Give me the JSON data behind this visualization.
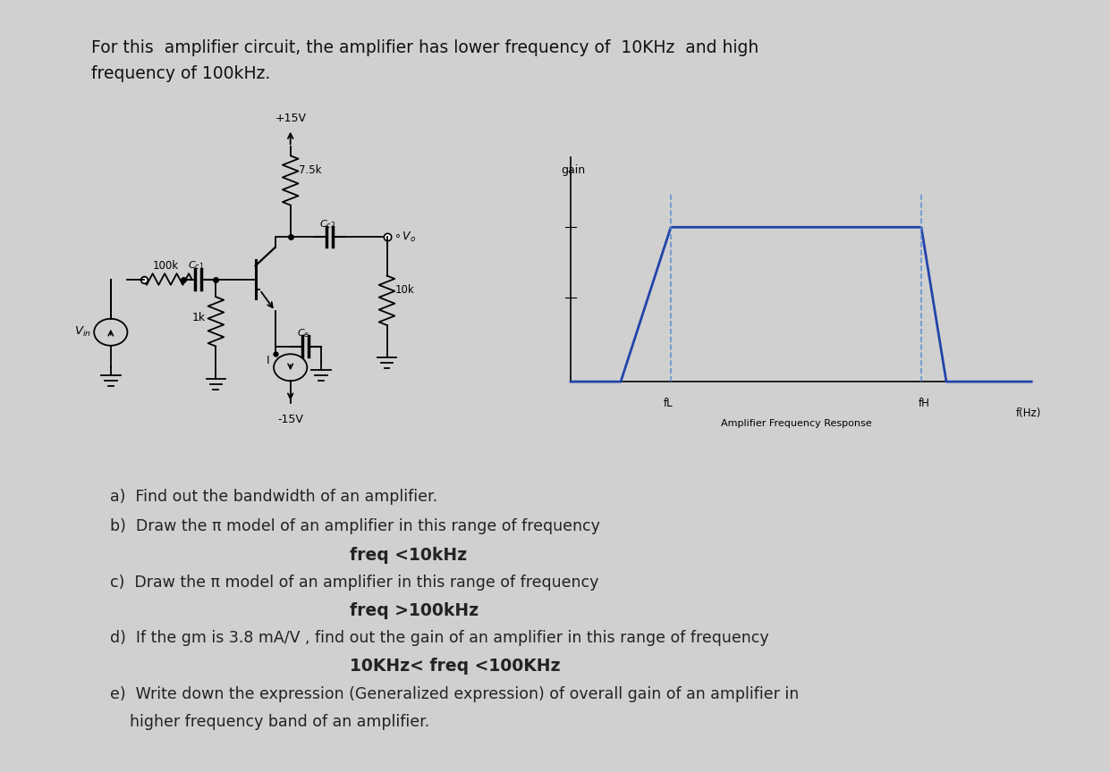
{
  "title_line1": "For this  amplifier circuit, the amplifier has lower frequency of  10KHz  and high",
  "title_line2": "frequency of 100kHz.",
  "bg_color": "#d0d0d0",
  "panel_bg": "#ffffff",
  "freq_response_bg": "#cdd8e0",
  "freq_response_label": "Amplifier Frequency Response",
  "freq_axis_label": "f(Hz)",
  "gain_label": "gain",
  "fl_label": "fL",
  "fh_label": "fH",
  "curve_color": "#2244aa",
  "dashed_color": "#5588cc",
  "questions": [
    [
      "a)",
      " Find out the bandwidth of an amplifier.",
      false
    ],
    [
      "b)",
      " Draw the π model of an amplifier in this range of frequency",
      false
    ],
    [
      "",
      "freq <10kHz",
      true
    ],
    [
      "c)",
      " Draw the π model of an amplifier in this range of frequency",
      false
    ],
    [
      "",
      "freq >100kHz",
      true
    ],
    [
      "d)",
      " If the gm is 3.8 mA/V , find out the gain of an amplifier in this range of frequency",
      false
    ],
    [
      "",
      "10KHz< freq <100KHz",
      true
    ],
    [
      "e)",
      " Write down the expression (Generalized expression) of overall gain of an amplifier in",
      false
    ],
    [
      "",
      "     higher frequency band of an amplifier.",
      false
    ]
  ]
}
